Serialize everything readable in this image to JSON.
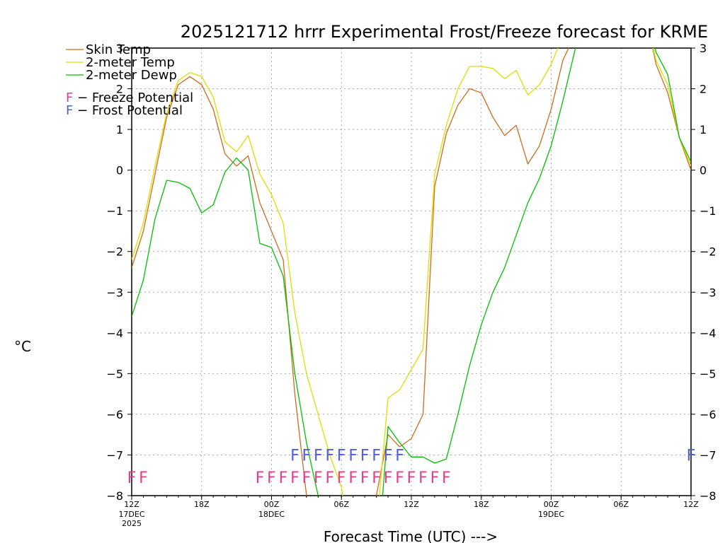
{
  "chart_data": {
    "type": "line",
    "title": "2025121712 hrrr Experimental Frost/Freeze forecast for KRME",
    "ylabel": "°C",
    "xlabel": "Forecast Time (UTC) --->",
    "ylim": [
      -8,
      3
    ],
    "xlim": [
      0,
      48
    ],
    "yticks": [
      -8,
      -7,
      -6,
      -5,
      -4,
      -3,
      -2,
      -1,
      0,
      1,
      2,
      3
    ],
    "yticks_right": [
      -8,
      -7,
      -6,
      -5,
      -4,
      -3,
      -2,
      -1,
      0,
      1,
      2,
      3
    ],
    "xticks": [
      {
        "x": 0,
        "label": "12Z",
        "sub": [
          "17DEC",
          "2025"
        ]
      },
      {
        "x": 6,
        "label": "18Z",
        "sub": []
      },
      {
        "x": 12,
        "label": "00Z",
        "sub": [
          "18DEC"
        ]
      },
      {
        "x": 18,
        "label": "06Z",
        "sub": []
      },
      {
        "x": 24,
        "label": "12Z",
        "sub": []
      },
      {
        "x": 30,
        "label": "18Z",
        "sub": []
      },
      {
        "x": 36,
        "label": "00Z",
        "sub": [
          "19DEC"
        ]
      },
      {
        "x": 42,
        "label": "06Z",
        "sub": []
      },
      {
        "x": 48,
        "label": "12Z",
        "sub": []
      }
    ],
    "grid": true,
    "series": [
      {
        "name": "Skin Temp",
        "color": "#d2691e",
        "points": [
          [
            0,
            -2.4
          ],
          [
            1,
            -1.5
          ],
          [
            2,
            -0.1
          ],
          [
            3,
            1.3
          ],
          [
            4,
            2.1
          ],
          [
            5,
            2.3
          ],
          [
            6,
            2.1
          ],
          [
            7,
            1.5
          ],
          [
            8,
            0.4
          ],
          [
            9,
            0.1
          ],
          [
            10,
            0.35
          ],
          [
            11,
            -0.8
          ],
          [
            12,
            -1.5
          ],
          [
            13,
            -2.2
          ],
          [
            14,
            -5.5
          ],
          [
            15,
            -8.0
          ],
          [
            15.1,
            -8.5
          ]
        ]
      },
      {
        "name": "Skin Temp",
        "color": "#d2691e",
        "points": [
          [
            20.9,
            -8.5
          ],
          [
            21,
            -8.0
          ],
          [
            22,
            -6.5
          ],
          [
            23,
            -6.8
          ],
          [
            24,
            -6.6
          ],
          [
            25,
            -6.0
          ],
          [
            26,
            -0.4
          ],
          [
            27,
            0.9
          ],
          [
            28,
            1.6
          ],
          [
            29,
            2.0
          ],
          [
            30,
            1.9
          ],
          [
            31,
            1.3
          ],
          [
            32,
            0.85
          ],
          [
            33,
            1.1
          ],
          [
            34,
            0.15
          ],
          [
            35,
            0.6
          ],
          [
            36,
            1.5
          ],
          [
            37,
            2.7
          ],
          [
            38,
            3.3
          ]
        ]
      },
      {
        "name": "Skin Temp",
        "color": "#d2691e",
        "points": [
          [
            44.5,
            3.3
          ],
          [
            45,
            2.6
          ],
          [
            46,
            1.9
          ],
          [
            47,
            0.8
          ],
          [
            48,
            0.0
          ]
        ]
      },
      {
        "name": "2-meter Temp",
        "color": "#dede00",
        "points": [
          [
            0,
            -2.2
          ],
          [
            1,
            -1.3
          ],
          [
            2,
            0.1
          ],
          [
            3,
            1.4
          ],
          [
            4,
            2.2
          ],
          [
            5,
            2.4
          ],
          [
            6,
            2.3
          ],
          [
            7,
            1.8
          ],
          [
            8,
            0.7
          ],
          [
            9,
            0.45
          ],
          [
            10,
            0.85
          ],
          [
            11,
            -0.1
          ],
          [
            12,
            -0.6
          ],
          [
            13,
            -1.3
          ],
          [
            14,
            -3.5
          ],
          [
            15,
            -5.0
          ],
          [
            16,
            -6.0
          ],
          [
            17,
            -7.0
          ],
          [
            18,
            -7.8
          ],
          [
            18.4,
            -8.5
          ]
        ]
      },
      {
        "name": "2-meter Temp",
        "color": "#dede00",
        "points": [
          [
            21.1,
            -8.5
          ],
          [
            22,
            -5.6
          ],
          [
            23,
            -5.4
          ],
          [
            24,
            -4.9
          ],
          [
            25,
            -4.4
          ],
          [
            26,
            -0.1
          ],
          [
            27,
            1.1
          ],
          [
            28,
            2.0
          ],
          [
            29,
            2.55
          ],
          [
            30,
            2.55
          ],
          [
            31,
            2.5
          ],
          [
            32,
            2.25
          ],
          [
            33,
            2.45
          ],
          [
            34,
            1.85
          ],
          [
            35,
            2.1
          ],
          [
            36,
            2.6
          ],
          [
            37,
            3.3
          ]
        ]
      },
      {
        "name": "2-meter Temp",
        "color": "#dede00",
        "points": [
          [
            44.5,
            3.3
          ],
          [
            45,
            2.7
          ],
          [
            46,
            2.1
          ],
          [
            47,
            0.8
          ],
          [
            48,
            0.1
          ]
        ]
      },
      {
        "name": "2-meter Dewp",
        "color": "#00c000",
        "points": [
          [
            0,
            -3.6
          ],
          [
            1,
            -2.7
          ],
          [
            2,
            -1.2
          ],
          [
            3,
            -0.25
          ],
          [
            4,
            -0.3
          ],
          [
            5,
            -0.45
          ],
          [
            6,
            -1.05
          ],
          [
            7,
            -0.85
          ],
          [
            8,
            -0.05
          ],
          [
            9,
            0.3
          ],
          [
            10,
            0.0
          ],
          [
            11,
            -1.8
          ],
          [
            12,
            -1.9
          ],
          [
            13,
            -2.6
          ],
          [
            14,
            -5.0
          ],
          [
            15,
            -6.7
          ],
          [
            16,
            -8.0
          ],
          [
            16.2,
            -8.5
          ]
        ]
      },
      {
        "name": "2-meter Dewp",
        "color": "#00c000",
        "points": [
          [
            21.4,
            -8.5
          ],
          [
            22,
            -6.3
          ],
          [
            23,
            -6.7
          ],
          [
            24,
            -7.05
          ],
          [
            25,
            -7.05
          ],
          [
            26,
            -7.2
          ],
          [
            27,
            -7.1
          ],
          [
            28,
            -6.0
          ],
          [
            29,
            -4.8
          ],
          [
            30,
            -3.8
          ],
          [
            31,
            -3.0
          ],
          [
            32,
            -2.4
          ],
          [
            33,
            -1.6
          ],
          [
            34,
            -0.8
          ],
          [
            35,
            -0.2
          ],
          [
            36,
            0.6
          ],
          [
            37,
            1.7
          ],
          [
            38,
            2.9
          ],
          [
            38.3,
            3.3
          ]
        ]
      },
      {
        "name": "2-meter Dewp",
        "color": "#00c000",
        "points": [
          [
            44.5,
            3.3
          ],
          [
            45,
            2.9
          ],
          [
            46,
            2.35
          ],
          [
            47,
            0.8
          ],
          [
            48,
            0.2
          ]
        ]
      }
    ],
    "legend": {
      "position": "top-left",
      "entries": [
        {
          "label": "Skin Temp",
          "color": "#d2691e"
        },
        {
          "label": "2-meter Temp",
          "color": "#dede00"
        },
        {
          "label": "2-meter Dewp",
          "color": "#00c000"
        }
      ],
      "markers": [
        {
          "letter": "F",
          "label": " - Freeze Potential",
          "color": "#e0408f"
        },
        {
          "letter": "F",
          "label": " - Frost Potential",
          "color": "#5060d8"
        }
      ]
    },
    "frost_markers": {
      "letter": "F",
      "color": "#5060d8",
      "y": -7.0,
      "hours": [
        14,
        15,
        16,
        17,
        18,
        19,
        20,
        21,
        22,
        23,
        48
      ]
    },
    "freeze_markers": {
      "letter": "F",
      "color": "#e0408f",
      "y": -7.55,
      "hours": [
        0,
        1,
        11,
        12,
        13,
        14,
        15,
        16,
        17,
        18,
        19,
        20,
        21,
        22,
        23,
        24,
        25,
        26,
        27
      ]
    }
  }
}
